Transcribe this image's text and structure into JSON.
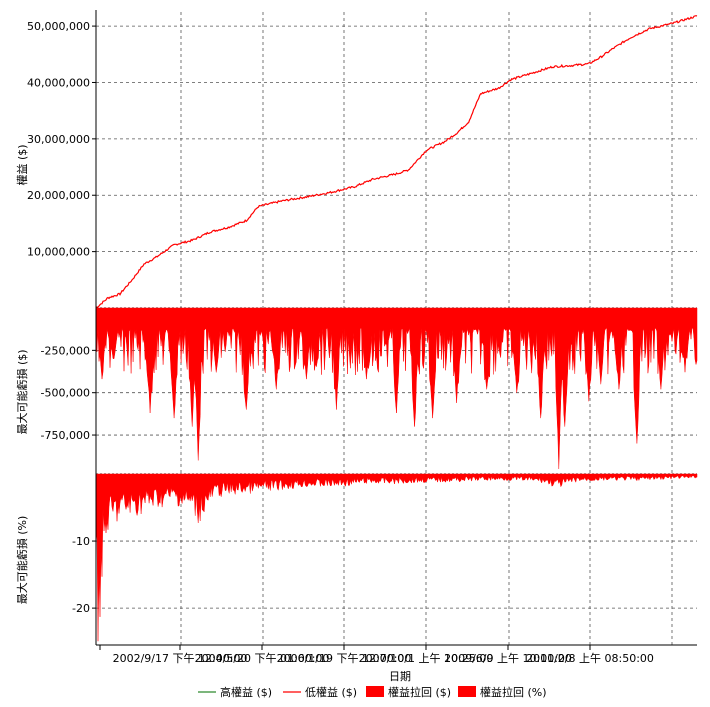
{
  "chart_data": [
    {
      "type": "line",
      "panel": "equity",
      "ylabel": "權益 ($)",
      "yticks": [
        {
          "value": 10000000,
          "label": "10,000,000"
        },
        {
          "value": 20000000,
          "label": "20,000,000"
        },
        {
          "value": 30000000,
          "label": "30,000,000"
        },
        {
          "value": 40000000,
          "label": "40,000,000"
        },
        {
          "value": 50000000,
          "label": "50,000,000"
        }
      ],
      "ylim": [
        0,
        52500000
      ],
      "grid": true,
      "series": [
        {
          "name": "低權益 ($)",
          "color": "#ff0000",
          "points": [
            [
              0.0,
              0
            ],
            [
              0.02,
              1800000
            ],
            [
              0.04,
              2500000
            ],
            [
              0.06,
              5000000
            ],
            [
              0.08,
              7800000
            ],
            [
              0.1,
              9000000
            ],
            [
              0.13,
              11200000
            ],
            [
              0.16,
              12000000
            ],
            [
              0.19,
              13500000
            ],
            [
              0.22,
              14300000
            ],
            [
              0.25,
              15500000
            ],
            [
              0.27,
              18000000
            ],
            [
              0.31,
              19000000
            ],
            [
              0.35,
              19700000
            ],
            [
              0.39,
              20500000
            ],
            [
              0.43,
              21500000
            ],
            [
              0.46,
              22800000
            ],
            [
              0.5,
              23800000
            ],
            [
              0.52,
              24500000
            ],
            [
              0.55,
              28000000
            ],
            [
              0.58,
              29500000
            ],
            [
              0.6,
              31000000
            ],
            [
              0.62,
              33000000
            ],
            [
              0.64,
              38000000
            ],
            [
              0.67,
              39000000
            ],
            [
              0.69,
              40500000
            ],
            [
              0.73,
              41800000
            ],
            [
              0.76,
              42800000
            ],
            [
              0.79,
              43000000
            ],
            [
              0.82,
              43300000
            ],
            [
              0.84,
              44500000
            ],
            [
              0.86,
              46000000
            ],
            [
              0.89,
              48000000
            ],
            [
              0.92,
              49500000
            ],
            [
              0.96,
              50500000
            ],
            [
              1.0,
              51800000
            ]
          ]
        }
      ]
    },
    {
      "type": "area",
      "panel": "drawdown-dollars",
      "ylabel": "最大可能虧損 ($)",
      "yticks": [
        {
          "value": -250000,
          "label": "-250,000"
        },
        {
          "value": -500000,
          "label": "-500,000"
        },
        {
          "value": -750000,
          "label": "-750,000"
        }
      ],
      "ylim": [
        -980000,
        0
      ],
      "grid": true,
      "series": [
        {
          "name": "權益拉回 ($)",
          "color": "#ff0000",
          "typical_range": [
            -120000,
            -400000
          ],
          "spikes": [
            [
              0.01,
              -420000
            ],
            [
              0.03,
              -300000
            ],
            [
              0.09,
              -620000
            ],
            [
              0.13,
              -650000
            ],
            [
              0.16,
              -700000
            ],
            [
              0.17,
              -900000
            ],
            [
              0.2,
              -380000
            ],
            [
              0.25,
              -600000
            ],
            [
              0.3,
              -480000
            ],
            [
              0.35,
              -420000
            ],
            [
              0.4,
              -600000
            ],
            [
              0.45,
              -420000
            ],
            [
              0.5,
              -620000
            ],
            [
              0.53,
              -700000
            ],
            [
              0.56,
              -650000
            ],
            [
              0.6,
              -560000
            ],
            [
              0.65,
              -480000
            ],
            [
              0.7,
              -500000
            ],
            [
              0.74,
              -650000
            ],
            [
              0.77,
              -950000
            ],
            [
              0.78,
              -700000
            ],
            [
              0.82,
              -550000
            ],
            [
              0.84,
              -450000
            ],
            [
              0.87,
              -480000
            ],
            [
              0.9,
              -800000
            ],
            [
              0.94,
              -480000
            ],
            [
              0.98,
              -330000
            ]
          ]
        }
      ]
    },
    {
      "type": "area",
      "panel": "drawdown-percent",
      "ylabel": "最大可能虧損 (%)",
      "yticks": [
        {
          "value": -10,
          "label": "-10"
        },
        {
          "value": -20,
          "label": "-20"
        }
      ],
      "ylim": [
        -25.5,
        0
      ],
      "grid": true,
      "series": [
        {
          "name": "權益拉回 (%)",
          "color": "#ff0000",
          "envelope": [
            [
              0.0,
              -24.5
            ],
            [
              0.005,
              -25.5
            ],
            [
              0.01,
              -16
            ],
            [
              0.02,
              -9
            ],
            [
              0.04,
              -7
            ],
            [
              0.06,
              -6.5
            ],
            [
              0.09,
              -5.5
            ],
            [
              0.13,
              -4.5
            ],
            [
              0.16,
              -6
            ],
            [
              0.17,
              -7.5
            ],
            [
              0.2,
              -3.5
            ],
            [
              0.25,
              -3
            ],
            [
              0.3,
              -2.5
            ],
            [
              0.35,
              -2
            ],
            [
              0.4,
              -2
            ],
            [
              0.45,
              -1.5
            ],
            [
              0.5,
              -1.5
            ],
            [
              0.55,
              -1.3
            ],
            [
              0.6,
              -1.2
            ],
            [
              0.65,
              -1
            ],
            [
              0.7,
              -1
            ],
            [
              0.74,
              -1.3
            ],
            [
              0.77,
              -2.2
            ],
            [
              0.8,
              -1.2
            ],
            [
              0.85,
              -1
            ],
            [
              0.9,
              -1
            ],
            [
              0.95,
              -0.8
            ],
            [
              1.0,
              -0.6
            ]
          ]
        }
      ]
    }
  ],
  "x_axis": {
    "xlabel": "日期",
    "tick_labels": [
      "2002/9/17 下午 12:00:00",
      "2004/5/20 下午 01:00:00",
      "2006/1/19 下午 12:00:00",
      "2007/10/1 上午 10:25:00",
      "2009/6/9 上午 10:00:00",
      "2011/2/8 上午 08:50:00"
    ]
  },
  "legend": {
    "placement": "bottom",
    "items": [
      {
        "label": "高權益 ($)",
        "color": "#2e8b2e",
        "style": "line"
      },
      {
        "label": "低權益 ($)",
        "color": "#ff0000",
        "style": "line"
      },
      {
        "label": "權益拉回 ($)",
        "color": "#ff0000",
        "style": "box"
      },
      {
        "label": "權益拉回 (%)",
        "color": "#ff0000",
        "style": "box"
      }
    ]
  }
}
